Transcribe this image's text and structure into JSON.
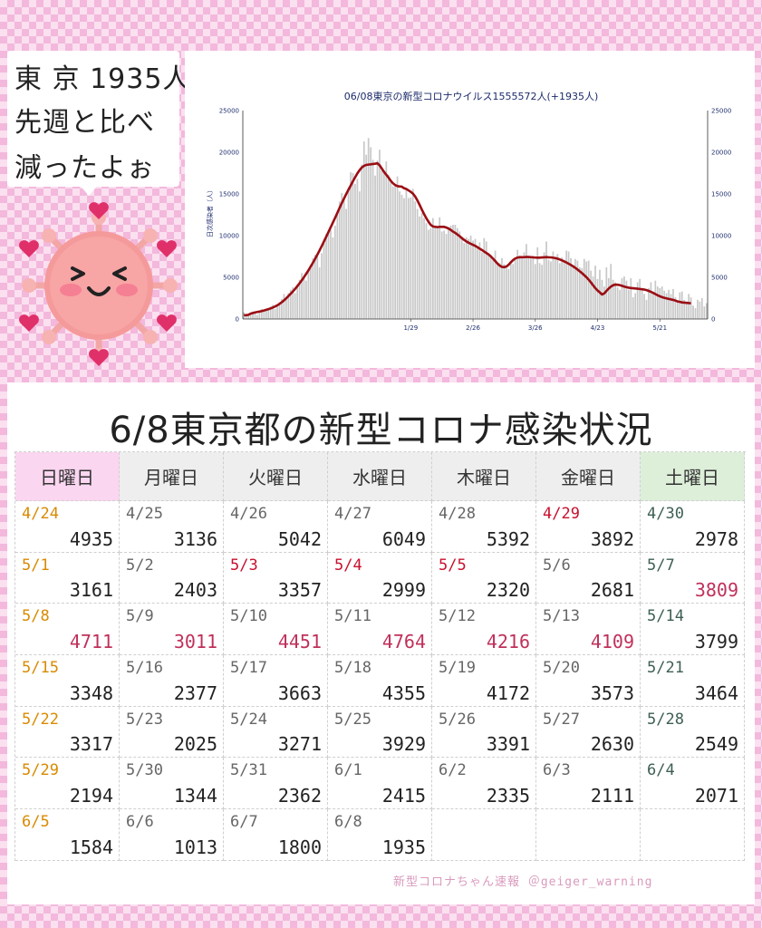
{
  "speech": {
    "lines": [
      "東 京 1935人",
      "先週と比べ",
      "減ったよぉ"
    ]
  },
  "colors": {
    "holiday_red": "#c8102e",
    "value_red": "#c0305a",
    "sunday_orange": "#d98a00",
    "curve": "#9a0e14",
    "bars": "#c8c8c8",
    "axis_text": "#1f2f6e"
  },
  "chart_data": {
    "type": "bar",
    "title": "06/08東京の新型コロナウイルス1555572人(+1935人)",
    "ylabel": "日次感染者（人）",
    "ylim": [
      0,
      25000
    ],
    "yticks": [
      0,
      5000,
      10000,
      15000,
      20000,
      25000
    ],
    "xtick_labels": [
      "1/29",
      "2/26",
      "3/26",
      "4/23",
      "5/21"
    ],
    "grid": false,
    "series": [
      {
        "kind": "bar",
        "values": [
          800,
          400,
          600,
          700,
          900,
          700,
          500,
          1000,
          1200,
          900,
          1100,
          1300,
          1500,
          1700,
          1200,
          1600,
          2000,
          2400,
          3000,
          2600,
          3100,
          3500,
          3800,
          3100,
          3900,
          4700,
          5500,
          5200,
          4600,
          5800,
          6500,
          7300,
          7700,
          7500,
          6200,
          7900,
          9100,
          10200,
          10400,
          10700,
          9800,
          11200,
          12800,
          14100,
          15100,
          14600,
          13200,
          15800,
          17600,
          17500,
          16200,
          16800,
          15300,
          18500,
          21300,
          19700,
          21700,
          20600,
          19100,
          17200,
          19000,
          20300,
          17800,
          17800,
          18900,
          17300,
          16400,
          15900,
          16200,
          17100,
          15300,
          14900,
          14500,
          15700,
          14500,
          14600,
          15600,
          14100,
          13200,
          12300,
          12700,
          12100,
          11500,
          10700,
          10900,
          12100,
          10900,
          11000,
          12200,
          10500,
          10600,
          10200,
          11000,
          11200,
          11300,
          11300,
          10900,
          10500,
          9900,
          9100,
          9800,
          9600,
          10000,
          9400,
          9600,
          8700,
          9200,
          8000,
          9700,
          9300,
          7900,
          7700,
          7100,
          8200,
          6700,
          6700,
          7300,
          6600,
          6100,
          6000,
          6900,
          6600,
          7100,
          8300,
          7600,
          7400,
          8000,
          9000,
          7500,
          7500,
          7600,
          6600,
          8600,
          6700,
          6500,
          8000,
          9300,
          7100,
          6900,
          8100,
          7200,
          7800,
          6700,
          7400,
          7100,
          8200,
          8100,
          7300,
          6200,
          7200,
          7000,
          6200,
          6100,
          7200,
          6900,
          7000,
          5800,
          5100,
          6400,
          4800,
          5900,
          4700,
          3900,
          6200,
          4900,
          6600,
          4700,
          4400,
          3800,
          3500,
          4900,
          5100,
          4600,
          3500,
          4900,
          2600,
          3100,
          4400,
          4800,
          3700,
          3000,
          2300,
          3700,
          4400,
          3200,
          4600,
          3900,
          3700,
          3900,
          3400,
          3100,
          3500,
          3000,
          3600,
          2600,
          2200,
          3200,
          3300,
          2300,
          2100,
          3000,
          2600,
          1600,
          1300,
          2300,
          2100,
          2500,
          1500,
          1900
        ]
      },
      {
        "kind": "line",
        "name": "",
        "values": [
          460,
          460,
          500,
          640,
          720,
          790,
          840,
          890,
          950,
          1020,
          1100,
          1180,
          1270,
          1380,
          1500,
          1640,
          1810,
          2010,
          2230,
          2480,
          2750,
          3020,
          3300,
          3610,
          3940,
          4280,
          4640,
          5020,
          5420,
          5840,
          6290,
          6740,
          7210,
          7710,
          8230,
          8760,
          9310,
          9870,
          10430,
          11000,
          11570,
          12140,
          12730,
          13330,
          13900,
          14450,
          14990,
          15500,
          16010,
          16520,
          17000,
          17460,
          17850,
          18170,
          18370,
          18480,
          18520,
          18550,
          18590,
          18620,
          18680,
          18440,
          18040,
          17640,
          17300,
          16970,
          16580,
          16280,
          16070,
          15940,
          15900,
          15870,
          15690,
          15590,
          15430,
          15250,
          15040,
          14690,
          14220,
          13680,
          13120,
          12580,
          12090,
          11660,
          11290,
          11100,
          11050,
          11020,
          11050,
          11060,
          11050,
          10970,
          10850,
          10680,
          10480,
          10330,
          10130,
          9930,
          9690,
          9490,
          9300,
          9150,
          9020,
          8890,
          8770,
          8620,
          8430,
          8280,
          8090,
          7920,
          7740,
          7510,
          7240,
          6950,
          6650,
          6410,
          6250,
          6220,
          6290,
          6500,
          6800,
          7060,
          7260,
          7370,
          7410,
          7410,
          7420,
          7440,
          7440,
          7420,
          7390,
          7370,
          7360,
          7360,
          7380,
          7400,
          7420,
          7400,
          7390,
          7350,
          7310,
          7240,
          7140,
          7030,
          6910,
          6780,
          6630,
          6480,
          6320,
          6140,
          5930,
          5720,
          5500,
          5260,
          5010,
          4720,
          4390,
          4040,
          3700,
          3420,
          3190,
          2940,
          3060,
          3370,
          3650,
          3880,
          4050,
          4120,
          4110,
          4060,
          3980,
          3890,
          3820,
          3760,
          3720,
          3690,
          3660,
          3630,
          3600,
          3570,
          3530,
          3460,
          3370,
          3260,
          3130,
          2990,
          2850,
          2730,
          2620,
          2540,
          2470,
          2410,
          2350,
          2290,
          2210,
          2110,
          2050,
          1990,
          1960,
          1940,
          1910,
          1900
        ]
      }
    ]
  },
  "table": {
    "title": "6/8東京都の新型コロナ感染状況",
    "headers": [
      "日曜日",
      "月曜日",
      "火曜日",
      "水曜日",
      "木曜日",
      "金曜日",
      "土曜日"
    ],
    "rows": [
      [
        {
          "date": "4/24",
          "value": "4935",
          "date_color": "#d98a00",
          "value_color": "#222222"
        },
        {
          "date": "4/25",
          "value": "3136",
          "date_color": "#666666",
          "value_color": "#222222"
        },
        {
          "date": "4/26",
          "value": "5042",
          "date_color": "#666666",
          "value_color": "#222222"
        },
        {
          "date": "4/27",
          "value": "6049",
          "date_color": "#666666",
          "value_color": "#222222"
        },
        {
          "date": "4/28",
          "value": "5392",
          "date_color": "#666666",
          "value_color": "#222222"
        },
        {
          "date": "4/29",
          "value": "3892",
          "date_color": "#c8102e",
          "value_color": "#222222"
        },
        {
          "date": "4/30",
          "value": "2978",
          "date_color": "#3d5f52",
          "value_color": "#222222"
        }
      ],
      [
        {
          "date": "5/1",
          "value": "3161",
          "date_color": "#d98a00",
          "value_color": "#222222"
        },
        {
          "date": "5/2",
          "value": "2403",
          "date_color": "#666666",
          "value_color": "#222222"
        },
        {
          "date": "5/3",
          "value": "3357",
          "date_color": "#c8102e",
          "value_color": "#222222"
        },
        {
          "date": "5/4",
          "value": "2999",
          "date_color": "#c8102e",
          "value_color": "#222222"
        },
        {
          "date": "5/5",
          "value": "2320",
          "date_color": "#c8102e",
          "value_color": "#222222"
        },
        {
          "date": "5/6",
          "value": "2681",
          "date_color": "#666666",
          "value_color": "#222222"
        },
        {
          "date": "5/7",
          "value": "3809",
          "date_color": "#3d5f52",
          "value_color": "#c0305a"
        }
      ],
      [
        {
          "date": "5/8",
          "value": "4711",
          "date_color": "#d98a00",
          "value_color": "#c0305a"
        },
        {
          "date": "5/9",
          "value": "3011",
          "date_color": "#666666",
          "value_color": "#c0305a"
        },
        {
          "date": "5/10",
          "value": "4451",
          "date_color": "#666666",
          "value_color": "#c0305a"
        },
        {
          "date": "5/11",
          "value": "4764",
          "date_color": "#666666",
          "value_color": "#c0305a"
        },
        {
          "date": "5/12",
          "value": "4216",
          "date_color": "#666666",
          "value_color": "#c0305a"
        },
        {
          "date": "5/13",
          "value": "4109",
          "date_color": "#666666",
          "value_color": "#c0305a"
        },
        {
          "date": "5/14",
          "value": "3799",
          "date_color": "#3d5f52",
          "value_color": "#222222"
        }
      ],
      [
        {
          "date": "5/15",
          "value": "3348",
          "date_color": "#d98a00",
          "value_color": "#222222"
        },
        {
          "date": "5/16",
          "value": "2377",
          "date_color": "#666666",
          "value_color": "#222222"
        },
        {
          "date": "5/17",
          "value": "3663",
          "date_color": "#666666",
          "value_color": "#222222"
        },
        {
          "date": "5/18",
          "value": "4355",
          "date_color": "#666666",
          "value_color": "#222222"
        },
        {
          "date": "5/19",
          "value": "4172",
          "date_color": "#666666",
          "value_color": "#222222"
        },
        {
          "date": "5/20",
          "value": "3573",
          "date_color": "#666666",
          "value_color": "#222222"
        },
        {
          "date": "5/21",
          "value": "3464",
          "date_color": "#3d5f52",
          "value_color": "#222222"
        }
      ],
      [
        {
          "date": "5/22",
          "value": "3317",
          "date_color": "#d98a00",
          "value_color": "#222222"
        },
        {
          "date": "5/23",
          "value": "2025",
          "date_color": "#666666",
          "value_color": "#222222"
        },
        {
          "date": "5/24",
          "value": "3271",
          "date_color": "#666666",
          "value_color": "#222222"
        },
        {
          "date": "5/25",
          "value": "3929",
          "date_color": "#666666",
          "value_color": "#222222"
        },
        {
          "date": "5/26",
          "value": "3391",
          "date_color": "#666666",
          "value_color": "#222222"
        },
        {
          "date": "5/27",
          "value": "2630",
          "date_color": "#666666",
          "value_color": "#222222"
        },
        {
          "date": "5/28",
          "value": "2549",
          "date_color": "#3d5f52",
          "value_color": "#222222"
        }
      ],
      [
        {
          "date": "5/29",
          "value": "2194",
          "date_color": "#d98a00",
          "value_color": "#222222"
        },
        {
          "date": "5/30",
          "value": "1344",
          "date_color": "#666666",
          "value_color": "#222222"
        },
        {
          "date": "5/31",
          "value": "2362",
          "date_color": "#666666",
          "value_color": "#222222"
        },
        {
          "date": "6/1",
          "value": "2415",
          "date_color": "#666666",
          "value_color": "#222222"
        },
        {
          "date": "6/2",
          "value": "2335",
          "date_color": "#666666",
          "value_color": "#222222"
        },
        {
          "date": "6/3",
          "value": "2111",
          "date_color": "#666666",
          "value_color": "#222222"
        },
        {
          "date": "6/4",
          "value": "2071",
          "date_color": "#3d5f52",
          "value_color": "#222222"
        }
      ],
      [
        {
          "date": "6/5",
          "value": "1584",
          "date_color": "#d98a00",
          "value_color": "#222222"
        },
        {
          "date": "6/6",
          "value": "1013",
          "date_color": "#666666",
          "value_color": "#222222"
        },
        {
          "date": "6/7",
          "value": "1800",
          "date_color": "#666666",
          "value_color": "#222222"
        },
        {
          "date": "6/8",
          "value": "1935",
          "date_color": "#666666",
          "value_color": "#222222"
        },
        {
          "date": "",
          "value": "",
          "date_color": "#666666",
          "value_color": "#222222"
        },
        {
          "date": "",
          "value": "",
          "date_color": "#666666",
          "value_color": "#222222"
        },
        {
          "date": "",
          "value": "",
          "date_color": "#666666",
          "value_color": "#222222"
        }
      ]
    ]
  },
  "footer": {
    "credit": "新型コロナちゃん速報 ＠geiger_warning"
  }
}
